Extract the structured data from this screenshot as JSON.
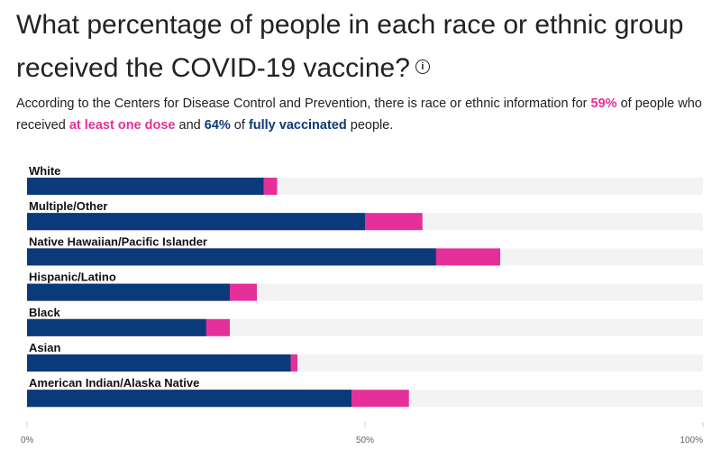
{
  "header": {
    "title": "What percentage of people in each race or ethnic group received the COVID-19 vaccine?",
    "info_icon": "info-circle-icon"
  },
  "subtitle": {
    "part1": "According to the Centers for Disease Control and Prevention, there is race or ethnic information for ",
    "pct_one_dose": "59%",
    "part2": " of people who received ",
    "one_dose_label": "at least one dose",
    "part3": " and ",
    "pct_full": "64%",
    "part4": " of ",
    "full_label": "fully vaccinated",
    "part5": " people."
  },
  "colors": {
    "fully_vaccinated": "#0b3a7a",
    "at_least_one_dose": "#e5309a",
    "track": "#f3f3f3",
    "axis": "#cccccc"
  },
  "chart_data": {
    "type": "bar",
    "orientation": "horizontal",
    "stacked_overlay": true,
    "categories": [
      "White",
      "Multiple/Other",
      "Native Hawaiian/Pacific Islander",
      "Hispanic/Latino",
      "Black",
      "Asian",
      "American Indian/Alaska Native"
    ],
    "series": [
      {
        "key": "fully_vaccinated",
        "values": [
          35,
          50,
          60.5,
          30,
          26.5,
          39,
          48
        ]
      },
      {
        "key": "at_least_one_dose",
        "values": [
          37,
          58.5,
          70,
          34,
          30,
          40,
          56.5
        ]
      }
    ],
    "xlim": [
      0,
      100
    ],
    "x_ticks": [
      "0%",
      "50%",
      "100%"
    ],
    "grid": false,
    "legend": "none"
  }
}
